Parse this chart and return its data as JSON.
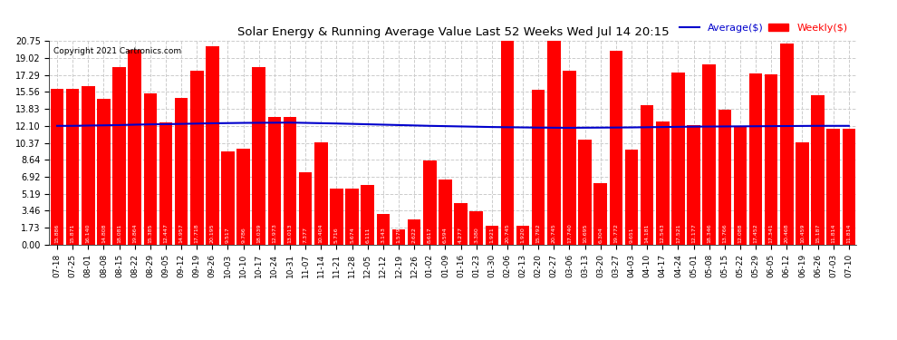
{
  "title": "Solar Energy & Running Average Value Last 52 Weeks Wed Jul 14 20:15",
  "copyright": "Copyright 2021 Cartronics.com",
  "legend_avg": "Average($)",
  "legend_weekly": "Weekly($)",
  "yticks": [
    0.0,
    1.73,
    3.46,
    5.19,
    6.92,
    8.64,
    10.37,
    12.1,
    13.83,
    15.56,
    17.29,
    19.02,
    20.75
  ],
  "bar_color": "#ff0000",
  "avg_line_color": "#0000cc",
  "background_color": "#ffffff",
  "grid_color": "#cccccc",
  "categories": [
    "07-18",
    "07-25",
    "08-01",
    "08-08",
    "08-15",
    "08-22",
    "08-29",
    "09-05",
    "09-12",
    "09-19",
    "09-26",
    "10-03",
    "10-10",
    "10-17",
    "10-24",
    "10-31",
    "11-07",
    "11-14",
    "11-21",
    "11-28",
    "12-05",
    "12-12",
    "12-19",
    "12-26",
    "01-02",
    "01-09",
    "01-16",
    "01-23",
    "01-30",
    "02-06",
    "02-13",
    "02-20",
    "02-27",
    "03-06",
    "03-13",
    "03-20",
    "03-27",
    "04-03",
    "04-10",
    "04-17",
    "04-24",
    "05-01",
    "05-08",
    "05-15",
    "05-22",
    "05-29",
    "06-05",
    "06-12",
    "06-19",
    "06-26",
    "07-03",
    "07-10"
  ],
  "bar_heights": [
    15.886,
    15.871,
    16.14,
    14.808,
    18.081,
    19.864,
    15.385,
    12.447,
    14.957,
    17.718,
    20.195,
    9.517,
    9.786,
    18.039,
    12.973,
    13.013,
    7.377,
    10.404,
    5.716,
    5.674,
    6.111,
    3.143,
    1.579,
    2.622,
    8.617,
    6.594,
    4.277,
    3.38,
    1.921,
    20.745,
    1.92,
    15.792,
    20.745,
    17.74,
    10.695,
    6.304,
    19.772,
    9.651,
    14.181,
    12.543,
    17.521,
    12.177,
    18.346,
    13.766,
    12.088,
    17.452,
    17.341,
    20.468,
    10.459,
    15.187,
    11.814,
    11.814
  ],
  "bar_labels": [
    "15.886",
    "15.871",
    "16.140",
    "14.808",
    "18.081",
    "19.864",
    "15.385",
    "12.447",
    "14.957",
    "17.718",
    "20.195",
    "9.517",
    "9.786",
    "18.039",
    "12.973",
    "13.013",
    "7.377",
    "10.404",
    "5.716",
    "5.674",
    "6.111",
    "3.143",
    "1.579",
    "2.622",
    "8.617",
    "6.594",
    "4.277",
    "3.380",
    "1.921",
    "20.745",
    "1.920",
    "15.792",
    "20.745",
    "17.740",
    "10.695",
    "6.304",
    "19.772",
    "9.651",
    "14.181",
    "12.543",
    "17.521",
    "12.177",
    "18.346",
    "13.766",
    "12.088",
    "17.452",
    "17.341",
    "20.468",
    "10.459",
    "15.187",
    "11.814",
    "11.814"
  ],
  "avg_values": [
    12.1,
    12.1,
    12.13,
    12.15,
    12.18,
    12.22,
    12.25,
    12.27,
    12.3,
    12.33,
    12.36,
    12.38,
    12.4,
    12.41,
    12.42,
    12.43,
    12.4,
    12.37,
    12.34,
    12.3,
    12.26,
    12.22,
    12.18,
    12.14,
    12.1,
    12.07,
    12.04,
    12.01,
    11.98,
    11.96,
    11.94,
    11.92,
    11.91,
    11.9,
    11.91,
    11.92,
    11.93,
    11.94,
    11.96,
    11.98,
    12.0,
    12.02,
    12.03,
    12.04,
    12.05,
    12.06,
    12.07,
    12.08,
    12.09,
    12.1,
    12.1,
    12.1
  ]
}
